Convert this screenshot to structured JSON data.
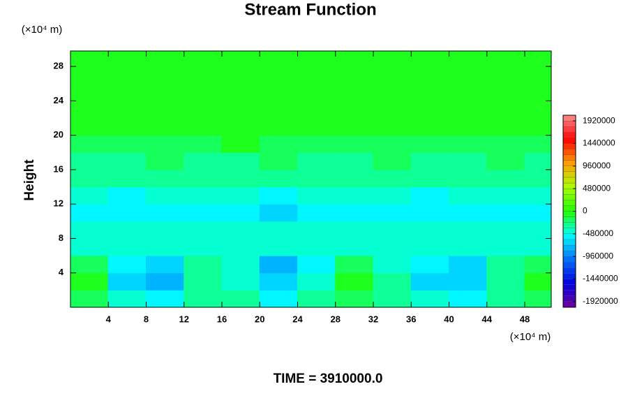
{
  "chart_data": {
    "type": "contour",
    "title": "Stream Function",
    "y_unit": "(×10⁴ m)",
    "x_unit": "(×10⁴ m)",
    "ylabel": "Height",
    "footer": "TIME = 3910000.0",
    "xlim": [
      0,
      50.8
    ],
    "ylim": [
      0,
      29.8
    ],
    "xticks": [
      4,
      8,
      12,
      16,
      20,
      24,
      28,
      32,
      36,
      40,
      44,
      48
    ],
    "yticks": [
      4,
      8,
      12,
      16,
      20,
      24,
      28
    ],
    "x": [
      2,
      6,
      10,
      14,
      18,
      22,
      26,
      30,
      34,
      38,
      42,
      46,
      50
    ],
    "y": [
      1,
      3,
      5,
      7,
      9,
      11,
      13,
      15,
      17,
      19,
      21,
      23,
      25,
      27,
      29
    ],
    "z": [
      [
        -150000,
        -450000,
        -550000,
        -250000,
        -350000,
        -550000,
        -350000,
        -150000,
        -300000,
        -450000,
        -500000,
        -300000,
        -150000
      ],
      [
        -100000,
        -650000,
        -750000,
        -250000,
        -450000,
        -700000,
        -450000,
        -100000,
        -350000,
        -650000,
        -650000,
        -300000,
        -100000
      ],
      [
        -200000,
        -600000,
        -700000,
        -300000,
        -400000,
        -750000,
        -500000,
        -150000,
        -400000,
        -600000,
        -700000,
        -350000,
        -150000
      ],
      [
        -400000,
        -450000,
        -450000,
        -400000,
        -420000,
        -450000,
        -420000,
        -380000,
        -420000,
        -450000,
        -450000,
        -400000,
        -380000
      ],
      [
        -480000,
        -480000,
        -480000,
        -480000,
        -480000,
        -480000,
        -480000,
        -480000,
        -480000,
        -480000,
        -480000,
        -480000,
        -480000
      ],
      [
        -560000,
        -600000,
        -580000,
        -560000,
        -600000,
        -620000,
        -600000,
        -560000,
        -600000,
        -580000,
        -600000,
        -580000,
        -560000
      ],
      [
        -480000,
        -500000,
        -480000,
        -450000,
        -480000,
        -500000,
        -480000,
        -450000,
        -480000,
        -500000,
        -480000,
        -450000,
        -480000
      ],
      [
        -340000,
        -360000,
        -330000,
        -340000,
        -360000,
        -350000,
        -340000,
        -330000,
        -350000,
        -360000,
        -340000,
        -330000,
        -350000
      ],
      [
        -250000,
        -260000,
        -240000,
        -250000,
        -260000,
        -240000,
        -250000,
        -260000,
        -240000,
        -250000,
        -260000,
        -240000,
        -250000
      ],
      [
        -170000,
        -160000,
        -160000,
        -160000,
        -120000,
        -170000,
        -170000,
        -160000,
        -160000,
        -170000,
        -160000,
        -170000,
        -160000
      ],
      [
        -60000,
        -60000,
        -60000,
        -60000,
        -60000,
        -60000,
        -60000,
        -60000,
        -60000,
        -60000,
        -60000,
        -60000,
        -60000
      ],
      [
        -60000,
        -60000,
        -60000,
        -60000,
        -60000,
        -60000,
        -60000,
        -60000,
        -60000,
        -60000,
        -60000,
        -60000,
        -60000
      ],
      [
        -60000,
        -60000,
        -60000,
        -60000,
        -60000,
        -60000,
        -60000,
        -60000,
        -60000,
        -60000,
        -60000,
        -60000,
        -60000
      ],
      [
        -60000,
        -60000,
        -60000,
        -60000,
        -60000,
        -60000,
        -60000,
        -60000,
        -60000,
        -60000,
        -60000,
        -60000,
        -60000
      ],
      [
        -60000,
        -60000,
        -60000,
        -60000,
        -60000,
        -60000,
        -60000,
        -60000,
        -60000,
        -60000,
        -60000,
        -60000,
        -60000
      ]
    ],
    "clim": [
      -2040000,
      2040000
    ],
    "nlevels": 34,
    "colormap": [
      "#7000a0",
      "#0000e0",
      "#0070ff",
      "#00ffff",
      "#22ff00",
      "#aaff00",
      "#ffa000",
      "#ff0000",
      "#ff9090"
    ],
    "cticks": [
      1920000,
      1440000,
      960000,
      480000,
      0,
      -480000,
      -960000,
      -1440000,
      -1920000
    ]
  }
}
